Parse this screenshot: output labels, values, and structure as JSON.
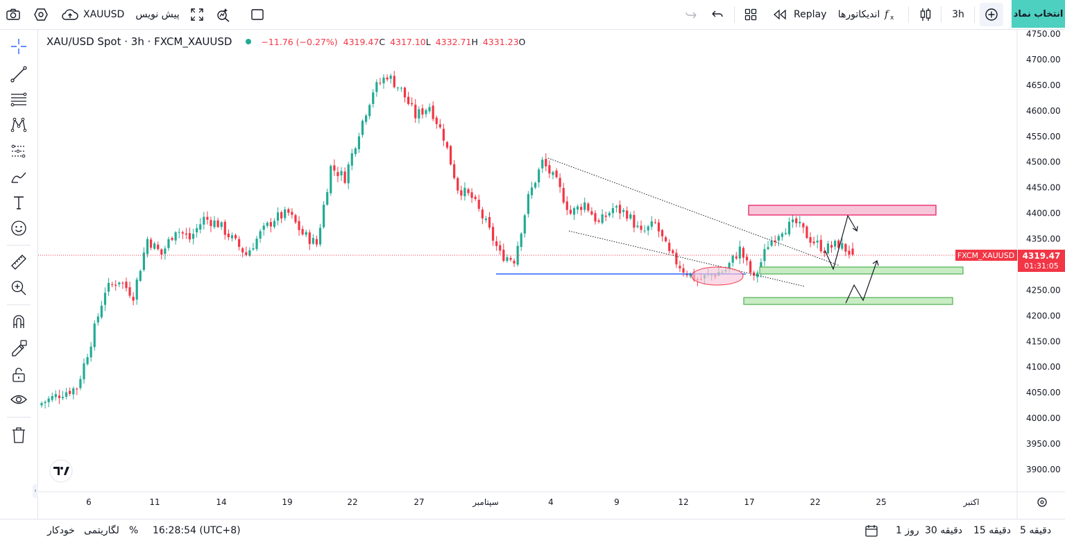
{
  "topbar": {
    "symbol": "XAUUSD",
    "publish_label": "پیش نویس",
    "replay_label": "Replay",
    "indicators_label": "اندیکاتورها",
    "interval_label": "3h",
    "symbol_search_label": "انتخاب نماد"
  },
  "legend": {
    "title": "XAU/USD Spot · 3h · FXCM_XAUUSD",
    "change": "−11.76 (−0.27%)",
    "close_value": "4319.47",
    "close_label": "C",
    "low_value": "4317.10",
    "low_label": "L",
    "high_value": "4332.71",
    "high_label": "H",
    "open_value": "4331.23",
    "open_label": "O"
  },
  "price_axis": {
    "ticks": [
      "4750.00",
      "4700.00",
      "4650.00",
      "4600.00",
      "4550.00",
      "4500.00",
      "4450.00",
      "4400.00",
      "4350.00",
      "4300.00",
      "4250.00",
      "4200.00",
      "4150.00",
      "4100.00",
      "4050.00",
      "4000.00",
      "3950.00",
      "3900.00"
    ],
    "symbol_tag": "FXCM_XAUUSD",
    "last_price": "4319.47",
    "countdown": "01:31:05"
  },
  "time_axis": {
    "labels": [
      "6",
      "11",
      "14",
      "19",
      "22",
      "27",
      "سپتامبر",
      "4",
      "9",
      "12",
      "17",
      "22",
      "25",
      "اکتبر"
    ]
  },
  "bottombar": {
    "ranges": [
      "5 دقیقه",
      "15 دقیقه",
      "30 دقیقه",
      "1 روز"
    ],
    "time": "16:28:54 (UTC+8)",
    "percent": "%",
    "log": "لگاریتمی",
    "auto": "خودکار"
  },
  "colors": {
    "up": "#22ab94",
    "down": "#f23645",
    "accent": "#4dd0c0",
    "support_line": "#2962ff",
    "resistance_zone": "#f7c6d9",
    "support_zone": "#c8ecc4"
  },
  "chart_data": {
    "type": "candlestick",
    "symbol": "XAU/USD Spot",
    "interval": "3h",
    "last_price": 4319.47,
    "ylim": [
      3870,
      4760
    ],
    "close_path": [
      [
        0,
        4030
      ],
      [
        6,
        4050
      ],
      [
        10,
        4060
      ],
      [
        14,
        4150
      ],
      [
        18,
        4250
      ],
      [
        22,
        4270
      ],
      [
        26,
        4240
      ],
      [
        30,
        4350
      ],
      [
        34,
        4320
      ],
      [
        38,
        4370
      ],
      [
        42,
        4350
      ],
      [
        46,
        4390
      ],
      [
        50,
        4380
      ],
      [
        54,
        4350
      ],
      [
        58,
        4320
      ],
      [
        62,
        4360
      ],
      [
        66,
        4390
      ],
      [
        70,
        4400
      ],
      [
        74,
        4360
      ],
      [
        78,
        4340
      ],
      [
        82,
        4490
      ],
      [
        86,
        4470
      ],
      [
        90,
        4560
      ],
      [
        94,
        4640
      ],
      [
        98,
        4670
      ],
      [
        102,
        4640
      ],
      [
        106,
        4590
      ],
      [
        110,
        4610
      ],
      [
        114,
        4550
      ],
      [
        118,
        4450
      ],
      [
        122,
        4430
      ],
      [
        126,
        4380
      ],
      [
        130,
        4320
      ],
      [
        134,
        4310
      ],
      [
        138,
        4430
      ],
      [
        142,
        4500
      ],
      [
        146,
        4460
      ],
      [
        150,
        4400
      ],
      [
        154,
        4420
      ],
      [
        158,
        4380
      ],
      [
        162,
        4410
      ],
      [
        166,
        4400
      ],
      [
        170,
        4360
      ],
      [
        174,
        4380
      ],
      [
        178,
        4320
      ],
      [
        182,
        4290
      ],
      [
        186,
        4270
      ],
      [
        190,
        4280
      ],
      [
        194,
        4290
      ],
      [
        198,
        4330
      ],
      [
        202,
        4270
      ],
      [
        206,
        4340
      ],
      [
        210,
        4370
      ],
      [
        214,
        4380
      ],
      [
        218,
        4350
      ],
      [
        222,
        4330
      ],
      [
        226,
        4340
      ],
      [
        230,
        4319.47
      ]
    ],
    "annotations": [
      {
        "kind": "resistance-zone",
        "from": 4395,
        "to": 4415
      },
      {
        "kind": "support-zone",
        "from": 4283,
        "to": 4296
      },
      {
        "kind": "support-zone",
        "from": 4225,
        "to": 4236
      },
      {
        "kind": "horizontal-line",
        "price": 4280
      },
      {
        "kind": "highlight-ellipse",
        "price": 4277
      }
    ]
  }
}
